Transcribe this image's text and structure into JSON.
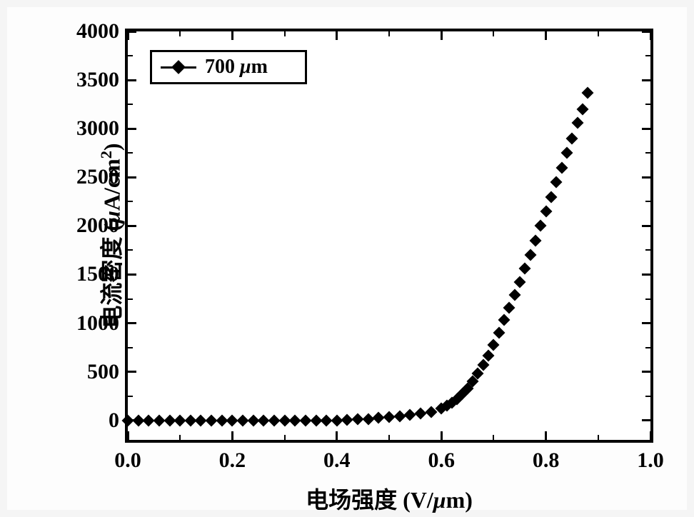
{
  "chart": {
    "type": "scatter",
    "background_color": "#ffffff",
    "border_color": "#000000",
    "border_width": 4,
    "xlabel": "电场强度 (V/μm)",
    "ylabel": "电流密度 (μA/cm²)",
    "label_fontsize": 32,
    "label_fontweight": "bold",
    "xlim": [
      0.0,
      1.0
    ],
    "ylim": [
      -200,
      4000
    ],
    "xtick_step": 0.2,
    "ytick_step": 500,
    "xticks": [
      0.0,
      0.2,
      0.4,
      0.6,
      0.8,
      1.0
    ],
    "yticks": [
      0,
      500,
      1000,
      1500,
      2000,
      2500,
      3000,
      3500,
      4000
    ],
    "xtick_labels": [
      "0.0",
      "0.2",
      "0.4",
      "0.6",
      "0.8",
      "1.0"
    ],
    "ytick_labels": [
      "0",
      "500",
      "1000",
      "1500",
      "2000",
      "2500",
      "3000",
      "3500",
      "4000"
    ],
    "tick_fontsize": 30,
    "tick_fontweight": "bold",
    "minor_ticks": true,
    "legend": {
      "position": "upper-left",
      "border_color": "#000000",
      "border_width": 3,
      "label": "700 μm",
      "marker": "diamond",
      "marker_color": "#000000"
    },
    "series": {
      "name": "700 μm",
      "marker": "diamond",
      "marker_size": 12,
      "marker_color": "#000000",
      "line_color": "#000000",
      "data": [
        [
          0.0,
          0
        ],
        [
          0.02,
          0
        ],
        [
          0.04,
          0
        ],
        [
          0.06,
          0
        ],
        [
          0.08,
          0
        ],
        [
          0.1,
          0
        ],
        [
          0.12,
          0
        ],
        [
          0.14,
          0
        ],
        [
          0.16,
          0
        ],
        [
          0.18,
          0
        ],
        [
          0.2,
          0
        ],
        [
          0.22,
          0
        ],
        [
          0.24,
          0
        ],
        [
          0.26,
          0
        ],
        [
          0.28,
          0
        ],
        [
          0.3,
          0
        ],
        [
          0.32,
          0
        ],
        [
          0.34,
          0
        ],
        [
          0.36,
          0
        ],
        [
          0.38,
          0
        ],
        [
          0.4,
          0
        ],
        [
          0.42,
          5
        ],
        [
          0.44,
          10
        ],
        [
          0.46,
          15
        ],
        [
          0.48,
          25
        ],
        [
          0.5,
          35
        ],
        [
          0.52,
          45
        ],
        [
          0.54,
          55
        ],
        [
          0.56,
          70
        ],
        [
          0.58,
          90
        ],
        [
          0.6,
          120
        ],
        [
          0.61,
          150
        ],
        [
          0.62,
          180
        ],
        [
          0.63,
          220
        ],
        [
          0.64,
          270
        ],
        [
          0.65,
          330
        ],
        [
          0.66,
          400
        ],
        [
          0.67,
          480
        ],
        [
          0.68,
          570
        ],
        [
          0.69,
          670
        ],
        [
          0.7,
          780
        ],
        [
          0.71,
          900
        ],
        [
          0.72,
          1030
        ],
        [
          0.73,
          1160
        ],
        [
          0.74,
          1290
        ],
        [
          0.75,
          1420
        ],
        [
          0.76,
          1560
        ],
        [
          0.77,
          1700
        ],
        [
          0.78,
          1850
        ],
        [
          0.79,
          2000
        ],
        [
          0.8,
          2150
        ],
        [
          0.81,
          2300
        ],
        [
          0.82,
          2450
        ],
        [
          0.83,
          2600
        ],
        [
          0.84,
          2750
        ],
        [
          0.85,
          2900
        ],
        [
          0.86,
          3060
        ],
        [
          0.87,
          3200
        ],
        [
          0.88,
          3370
        ]
      ]
    }
  }
}
